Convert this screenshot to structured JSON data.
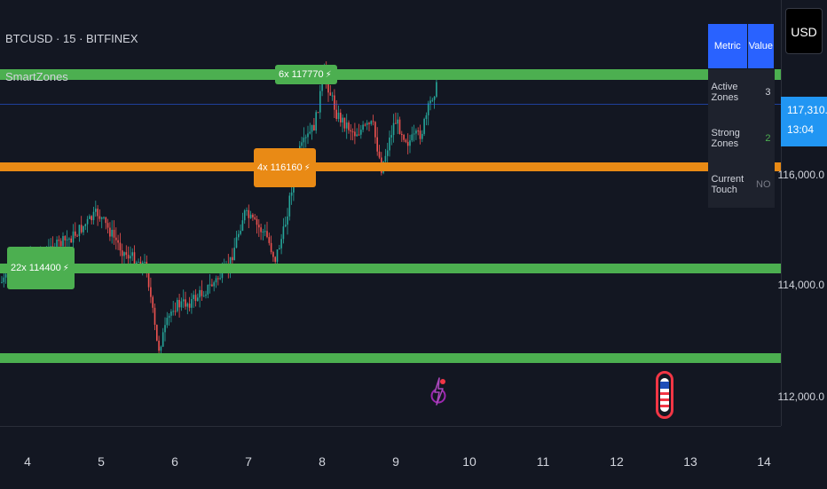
{
  "symbol": "BTCUSD · 15 · BITFINEX",
  "indicator": "SmartZones",
  "currency": "USD",
  "last_price": {
    "price": "117,310.0",
    "countdown": "13:04",
    "color": "#2196f3"
  },
  "price_axis": [
    "116,000.0",
    "114,000.0",
    "112,000.0"
  ],
  "time_axis": [
    "4",
    "5",
    "6",
    "7",
    "8",
    "9",
    "10",
    "11",
    "12",
    "13",
    "14"
  ],
  "zones": [
    {
      "label": "6x 117770",
      "price": 117770,
      "color": "#4caf50",
      "icon": "bolt-icon"
    },
    {
      "label": "4x 116160",
      "price": 116160,
      "color": "#e98a15",
      "icon": "bolt-icon"
    },
    {
      "label": "22x 114400",
      "price": 114400,
      "color": "#4caf50",
      "icon": "bolt-icon"
    },
    {
      "price": 112700,
      "color": "#4caf50"
    }
  ],
  "metrics_table": {
    "header": {
      "metric": "Metric",
      "value": "Value"
    },
    "rows": [
      {
        "metric": "Active Zones",
        "value": "3",
        "value_color": "#d1d4dc"
      },
      {
        "metric": "Strong Zones",
        "value": "2",
        "value_color": "#4caf50"
      },
      {
        "metric": "Current Touch",
        "value": "NO",
        "value_color": "#787b86"
      }
    ]
  },
  "events": [
    {
      "name": "lightning-event-icon",
      "color": "#9c27b0"
    },
    {
      "name": "us-flag-event-icon",
      "color": "#f23645"
    }
  ],
  "colors": {
    "up": "#26a69a",
    "down": "#ef5350",
    "background": "#131722",
    "accent": "#2962ff"
  }
}
